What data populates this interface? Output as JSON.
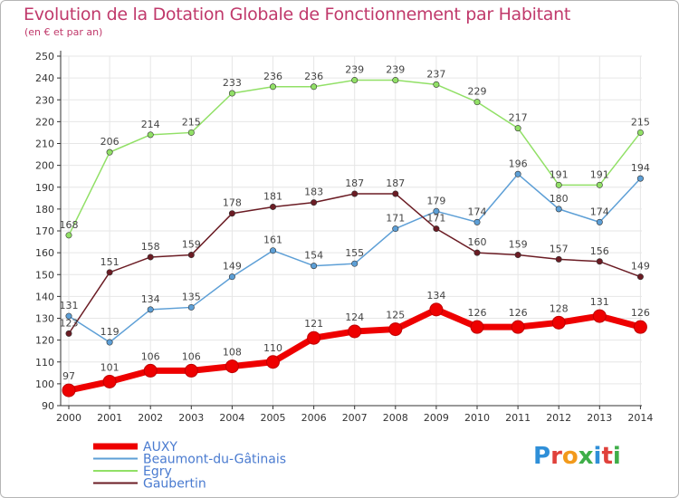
{
  "title": "Evolution de la Dotation Globale de Fonctionnement par Habitant",
  "subtitle": "(en € et par an)",
  "logo_text": "Proxiti",
  "colors": {
    "title": "#c0396b",
    "axis": "#333333",
    "grid": "#e6e6e6"
  },
  "chart_data": {
    "type": "line",
    "title": "Evolution de la Dotation Globale de Fonctionnement par Habitant",
    "subtitle": "(en € et par an)",
    "xlabel": "",
    "ylabel": "",
    "x": [
      "2000",
      "2001",
      "2002",
      "2003",
      "2004",
      "2005",
      "2006",
      "2007",
      "2008",
      "2009",
      "2010",
      "2011",
      "2012",
      "2013",
      "2014"
    ],
    "ylim": [
      90,
      250
    ],
    "ytick_step": 10,
    "grid": true,
    "legend_position": "bottom-left",
    "series": [
      {
        "name": "AUXY",
        "color": "#ee0000",
        "values": [
          97,
          101,
          106,
          106,
          108,
          110,
          121,
          124,
          125,
          134,
          126,
          126,
          128,
          131,
          126
        ],
        "thick": true
      },
      {
        "name": "Beaumont-du-Gâtinais",
        "color": "#5d9fd6",
        "values": [
          131,
          119,
          134,
          135,
          149,
          161,
          154,
          155,
          171,
          179,
          174,
          196,
          180,
          174,
          194
        ]
      },
      {
        "name": "Egry",
        "color": "#91e066",
        "values": [
          168,
          206,
          214,
          215,
          233,
          236,
          236,
          239,
          239,
          237,
          229,
          217,
          191,
          191,
          215
        ]
      },
      {
        "name": "Gaubertin",
        "color": "#6b1c24",
        "values": [
          123,
          151,
          158,
          159,
          178,
          181,
          183,
          187,
          187,
          171,
          160,
          159,
          157,
          156,
          149
        ]
      }
    ]
  }
}
